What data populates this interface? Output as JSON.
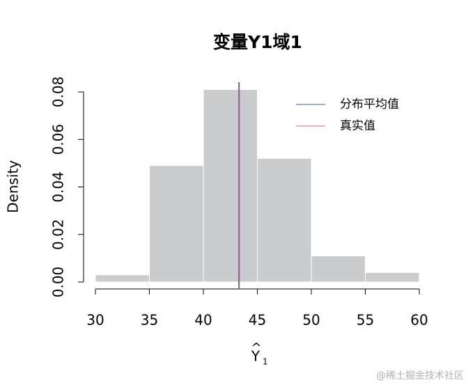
{
  "chart_data": {
    "type": "histogram",
    "title": "变量Y1域1",
    "x_label": {
      "base": "Y",
      "subscript": "1"
    },
    "y_label": "Density",
    "bins": [
      30,
      35,
      40,
      45,
      50,
      55,
      60
    ],
    "values": [
      0.003,
      0.049,
      0.081,
      0.052,
      0.011,
      0.004
    ],
    "color": "#c9cbcd",
    "xlim": [
      30,
      60
    ],
    "xticks": [
      30,
      35,
      40,
      45,
      50,
      55,
      60
    ],
    "ylim": [
      0,
      0.08
    ],
    "yticks": [
      {
        "value": 0,
        "label": "0.00"
      },
      0.02,
      0.04,
      0.06,
      0.08
    ],
    "lines": [
      {
        "name": "分布平均值",
        "color": "#3b5ea8",
        "value": 43.3
      },
      {
        "name": "真实值",
        "color": "#e0606a",
        "value": 43.3
      }
    ],
    "legend": "top-right",
    "watermark": "@稀土掘金技术社区"
  }
}
